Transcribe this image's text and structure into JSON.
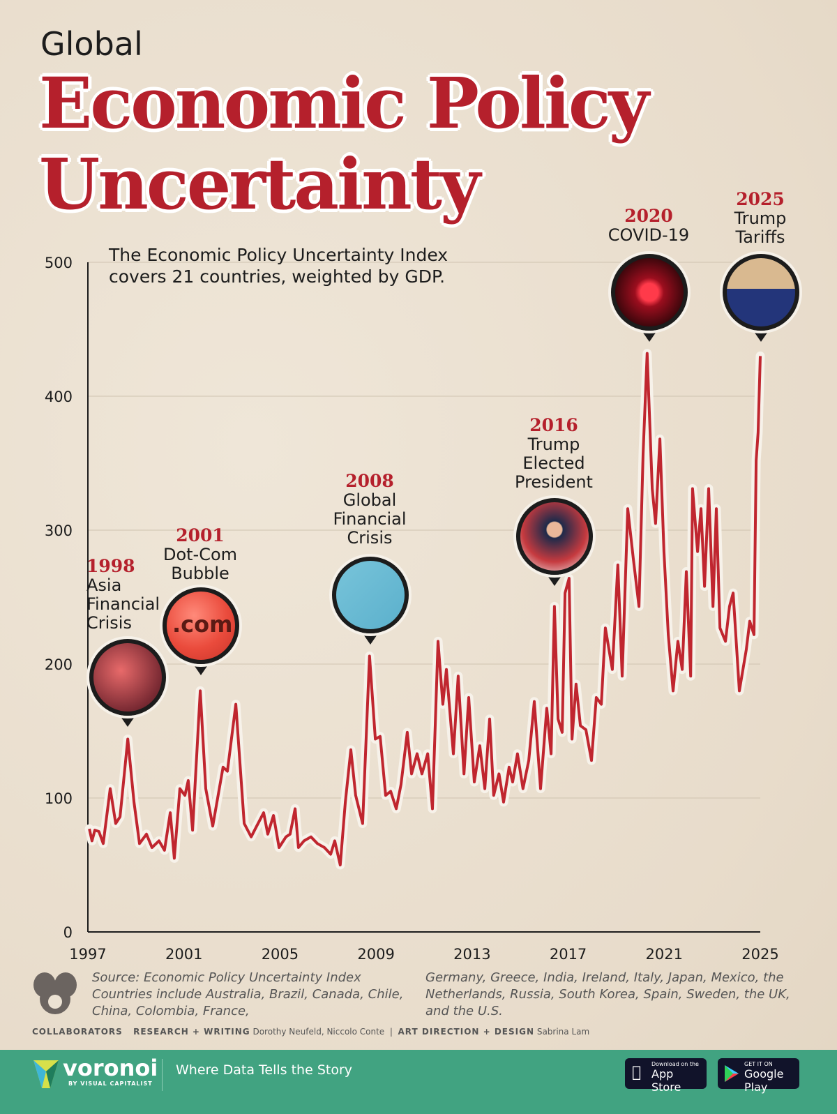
{
  "header": {
    "kicker": "Global",
    "title_line1": "Economic Policy",
    "title_line2": "Uncertainty",
    "subtitle_line1": "The Economic Policy Uncertainty Index",
    "subtitle_line2": "covers 21 countries, weighted by GDP."
  },
  "annotations": [
    {
      "year": "1998",
      "lines": [
        "Asia",
        "Financial",
        "Crisis"
      ],
      "icon": "stock-crash-photo"
    },
    {
      "year": "2001",
      "lines": [
        "Dot-Com",
        "Bubble"
      ],
      "icon": "dotcom-bubble"
    },
    {
      "year": "2008",
      "lines": [
        "Global",
        "Financial",
        "Crisis"
      ],
      "icon": "wallet-houses-photo"
    },
    {
      "year": "2016",
      "lines": [
        "Trump",
        "Elected",
        "President"
      ],
      "icon": "trump-photo"
    },
    {
      "year": "2020",
      "lines": [
        "COVID-19"
      ],
      "icon": "virus-photo"
    },
    {
      "year": "2025",
      "lines": [
        "Trump",
        "Tariffs"
      ],
      "icon": "boxes-flag-photo"
    }
  ],
  "chart_data": {
    "type": "line",
    "title": "Global Economic Policy Uncertainty",
    "xlabel": "",
    "ylabel": "",
    "xlim": [
      1997,
      2025
    ],
    "ylim": [
      0,
      500
    ],
    "xticks": [
      "1997",
      "2001",
      "2005",
      "2009",
      "2013",
      "2017",
      "2021",
      "2025"
    ],
    "yticks": [
      "0",
      "100",
      "200",
      "300",
      "400",
      "500"
    ],
    "grid": true,
    "color": "#c0262f",
    "x": [
      1997.06,
      1997.17,
      1997.29,
      1997.46,
      1997.64,
      1997.93,
      1998.16,
      1998.34,
      1998.66,
      1998.92,
      1999.15,
      1999.44,
      1999.67,
      1999.96,
      2000.19,
      2000.43,
      2000.6,
      2000.83,
      2001.04,
      2001.18,
      2001.36,
      2001.68,
      2001.91,
      2002.2,
      2002.63,
      2002.81,
      2003.16,
      2003.51,
      2003.8,
      2004.03,
      2004.32,
      2004.49,
      2004.73,
      2004.96,
      2005.25,
      2005.42,
      2005.63,
      2005.77,
      2006.0,
      2006.29,
      2006.56,
      2006.85,
      2007.11,
      2007.28,
      2007.51,
      2007.72,
      2007.95,
      2008.15,
      2008.44,
      2008.73,
      2008.97,
      2009.17,
      2009.4,
      2009.61,
      2009.84,
      2010.04,
      2010.3,
      2010.48,
      2010.71,
      2010.91,
      2011.15,
      2011.35,
      2011.58,
      2011.78,
      2011.93,
      2012.22,
      2012.42,
      2012.66,
      2012.86,
      2013.09,
      2013.32,
      2013.53,
      2013.73,
      2013.9,
      2014.12,
      2014.31,
      2014.54,
      2014.69,
      2014.89,
      2015.12,
      2015.36,
      2015.59,
      2015.85,
      2016.11,
      2016.29,
      2016.43,
      2016.58,
      2016.75,
      2016.87,
      2017.04,
      2017.16,
      2017.33,
      2017.51,
      2017.74,
      2017.97,
      2018.17,
      2018.38,
      2018.55,
      2018.84,
      2019.07,
      2019.25,
      2019.48,
      2019.71,
      2019.95,
      2020.12,
      2020.29,
      2020.5,
      2020.64,
      2020.82,
      2020.99,
      2021.17,
      2021.37,
      2021.57,
      2021.75,
      2021.92,
      2022.1,
      2022.18,
      2022.39,
      2022.53,
      2022.68,
      2022.85,
      2023.03,
      2023.17,
      2023.32,
      2023.55,
      2023.72,
      2023.87,
      2024.13,
      2024.42,
      2024.56,
      2024.74,
      2024.83,
      2024.91,
      2025.0
    ],
    "y": [
      77,
      68,
      76,
      75,
      66,
      107,
      81,
      86,
      144,
      97,
      66,
      73,
      63,
      68,
      61,
      89,
      55,
      107,
      102,
      113,
      76,
      180,
      107,
      79,
      123,
      120,
      170,
      81,
      71,
      79,
      89,
      73,
      87,
      63,
      71,
      73,
      92,
      63,
      68,
      71,
      66,
      63,
      58,
      68,
      50,
      97,
      136,
      102,
      81,
      206,
      144,
      146,
      102,
      105,
      92,
      110,
      149,
      118,
      133,
      118,
      133,
      92,
      217,
      170,
      196,
      133,
      191,
      118,
      175,
      112,
      139,
      107,
      159,
      102,
      118,
      97,
      123,
      112,
      133,
      107,
      128,
      172,
      107,
      167,
      133,
      243,
      159,
      149,
      253,
      264,
      144,
      185,
      154,
      151,
      128,
      175,
      170,
      227,
      196,
      274,
      191,
      316,
      279,
      243,
      357,
      432,
      331,
      305,
      368,
      284,
      222,
      180,
      217,
      196,
      269,
      191,
      331,
      284,
      316,
      258,
      331,
      243,
      316,
      227,
      217,
      243,
      253,
      180,
      211,
      232,
      222,
      352,
      373,
      430
    ]
  },
  "footer": {
    "source_col1": "Source: Economic Policy Uncertainty Index Countries include Australia, Brazil, Canada, Chile, China, Colombia, France,",
    "source_col2": "Germany, Greece, India, Ireland, Italy, Japan, Mexico, the Netherlands, Russia, South Korea, Spain, Sweden, the UK, and the U.S.",
    "collaborators_label": "COLLABORATORS",
    "research_label": "RESEARCH + WRITING",
    "research_names": "Dorothy Neufeld, Niccolo Conte",
    "design_label": "ART DIRECTION + DESIGN",
    "design_names": "Sabrina Lam"
  },
  "brand": {
    "name": "voronoi",
    "byline": "BY VISUAL CAPITALIST",
    "tagline": "Where Data Tells the Story",
    "appstore_small": "Download on the",
    "appstore": "App Store",
    "googleplay_small": "GET IT ON",
    "googleplay": "Google Play",
    "bar_color": "#41a381",
    "accent": "#b5202c"
  }
}
